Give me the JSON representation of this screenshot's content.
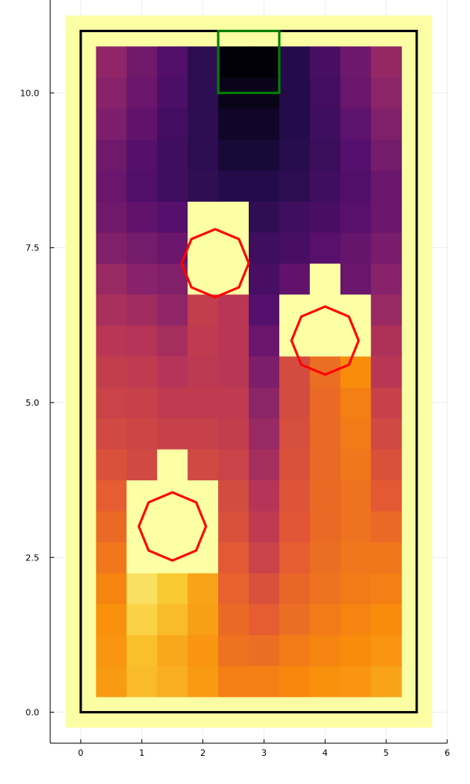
{
  "chart_data": {
    "type": "heatmap",
    "title": "",
    "xlabel": "",
    "ylabel": "",
    "xlim": [
      -0.5,
      6
    ],
    "ylim": [
      -0.5,
      11.5
    ],
    "x_ticks": [
      {
        "value": 0,
        "label": "0"
      },
      {
        "value": 1,
        "label": "1"
      },
      {
        "value": 2,
        "label": "2"
      },
      {
        "value": 3,
        "label": "3"
      },
      {
        "value": 4,
        "label": "4"
      },
      {
        "value": 5,
        "label": "5"
      },
      {
        "value": 6,
        "label": "6"
      }
    ],
    "y_ticks": [
      {
        "value": 0,
        "label": "0.0"
      },
      {
        "value": 2.5,
        "label": "2.5"
      },
      {
        "value": 5,
        "label": "5.0"
      },
      {
        "value": 7.5,
        "label": "7.5"
      },
      {
        "value": 10,
        "label": "10.0"
      }
    ],
    "grid": true,
    "colormap": "inferno",
    "cell_columns": [
      0.5,
      1.0,
      1.5,
      2.0,
      2.5,
      3.0,
      3.5,
      4.0,
      4.5,
      5.0
    ],
    "cell_rows": [
      0.5,
      1.0,
      1.5,
      2.0,
      2.5,
      3.0,
      3.5,
      4.0,
      4.5,
      5.0,
      5.5,
      6.0,
      6.5,
      7.0,
      7.5,
      8.0,
      8.5,
      9.0,
      9.5,
      10.0,
      10.5
    ],
    "cell_width": 0.5,
    "z_values": [
      [
        0.78,
        0.85,
        0.82,
        0.78,
        0.72,
        0.72,
        0.74,
        0.76,
        0.77,
        0.8
      ],
      [
        0.77,
        0.86,
        0.81,
        0.77,
        0.69,
        0.68,
        0.71,
        0.73,
        0.75,
        0.77
      ],
      [
        0.76,
        0.9,
        0.85,
        0.79,
        0.67,
        0.64,
        0.68,
        0.71,
        0.73,
        0.75
      ],
      [
        0.73,
        0.93,
        0.88,
        0.8,
        0.65,
        0.6,
        0.66,
        0.69,
        0.71,
        0.72
      ],
      [
        0.7,
        1.0,
        1.0,
        1.0,
        0.63,
        0.55,
        0.64,
        0.68,
        0.7,
        0.7
      ],
      [
        0.67,
        1.0,
        1.0,
        1.0,
        0.6,
        0.52,
        0.62,
        0.67,
        0.69,
        0.67
      ],
      [
        0.64,
        1.0,
        1.0,
        1.0,
        0.58,
        0.49,
        0.61,
        0.67,
        0.69,
        0.63
      ],
      [
        0.6,
        0.57,
        1.0,
        0.57,
        0.55,
        0.45,
        0.6,
        0.67,
        0.7,
        0.6
      ],
      [
        0.57,
        0.56,
        0.54,
        0.54,
        0.53,
        0.42,
        0.59,
        0.67,
        0.71,
        0.57
      ],
      [
        0.55,
        0.54,
        0.52,
        0.52,
        0.52,
        0.39,
        0.58,
        0.67,
        0.72,
        0.54
      ],
      [
        0.53,
        0.52,
        0.49,
        0.51,
        0.5,
        0.35,
        0.58,
        0.68,
        0.75,
        0.5
      ],
      [
        0.5,
        0.49,
        0.45,
        0.52,
        0.5,
        0.3,
        1.0,
        1.0,
        1.0,
        0.47
      ],
      [
        0.46,
        0.44,
        0.4,
        0.53,
        0.5,
        0.25,
        1.0,
        1.0,
        1.0,
        0.42
      ],
      [
        0.42,
        0.38,
        0.36,
        1.0,
        1.0,
        0.22,
        0.28,
        1.0,
        0.3,
        0.38
      ],
      [
        0.36,
        0.33,
        0.3,
        1.0,
        1.0,
        0.2,
        0.22,
        0.26,
        0.29,
        0.34
      ],
      [
        0.32,
        0.28,
        0.25,
        1.0,
        1.0,
        0.17,
        0.2,
        0.22,
        0.26,
        0.3
      ],
      [
        0.3,
        0.24,
        0.2,
        0.17,
        0.14,
        0.14,
        0.16,
        0.2,
        0.24,
        0.3
      ],
      [
        0.32,
        0.25,
        0.2,
        0.16,
        0.1,
        0.1,
        0.15,
        0.19,
        0.25,
        0.33
      ],
      [
        0.35,
        0.28,
        0.21,
        0.16,
        0.07,
        0.07,
        0.14,
        0.2,
        0.27,
        0.36
      ],
      [
        0.38,
        0.3,
        0.23,
        0.16,
        0.04,
        0.04,
        0.14,
        0.21,
        0.3,
        0.39
      ],
      [
        0.4,
        0.32,
        0.24,
        0.16,
        0.01,
        0.01,
        0.14,
        0.22,
        0.31,
        0.41
      ]
    ],
    "frame_padding": {
      "x": [
        -0.25,
        5.75
      ],
      "y": [
        -0.25,
        11.25
      ]
    },
    "boundary_rect": {
      "x": [
        0,
        5.5
      ],
      "y": [
        0,
        11
      ]
    },
    "target_rect": {
      "x": [
        2.25,
        3.25
      ],
      "y": [
        10,
        11
      ]
    },
    "obstacles": [
      {
        "center_x": 1.5,
        "center_y": 3.0,
        "radius": 0.55
      },
      {
        "center_x": 2.2,
        "center_y": 7.25,
        "radius": 0.55
      },
      {
        "center_x": 4.0,
        "center_y": 6.0,
        "radius": 0.55
      }
    ],
    "obstacle_sides": 8,
    "colors": {
      "frame_fill": "#fcfea4",
      "boundary": "#000000",
      "target": "#008000",
      "obstacle": "#ff0000",
      "axis": "#000000",
      "grid": "#e9e9e9"
    }
  }
}
